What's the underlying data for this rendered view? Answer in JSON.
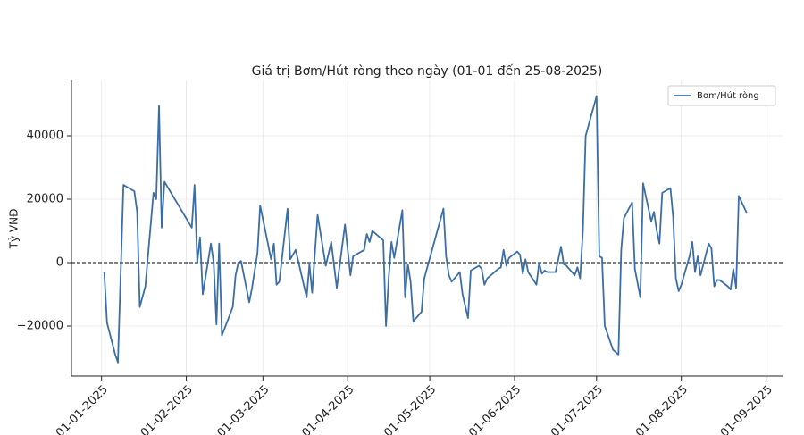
{
  "chart_data": {
    "type": "line",
    "title": "Giá trị Bơm/Hút ròng theo ngày (01-01 đến 25-08-2025)",
    "ylabel": "Tỷ VNĐ",
    "x": [
      "2025-01-02",
      "2025-01-03",
      "2025-01-06",
      "2025-01-07",
      "2025-01-09",
      "2025-01-13",
      "2025-01-14",
      "2025-01-15",
      "2025-01-17",
      "2025-01-20",
      "2025-01-21",
      "2025-01-22",
      "2025-01-23",
      "2025-01-24",
      "2025-02-03",
      "2025-02-04",
      "2025-02-05",
      "2025-02-06",
      "2025-02-07",
      "2025-02-10",
      "2025-02-11",
      "2025-02-12",
      "2025-02-13",
      "2025-02-14",
      "2025-02-18",
      "2025-02-19",
      "2025-02-20",
      "2025-02-21",
      "2025-02-24",
      "2025-02-25",
      "2025-02-27",
      "2025-02-28",
      "2025-03-04",
      "2025-03-05",
      "2025-03-06",
      "2025-03-07",
      "2025-03-10",
      "2025-03-11",
      "2025-03-13",
      "2025-03-17",
      "2025-03-18",
      "2025-03-19",
      "2025-03-21",
      "2025-03-24",
      "2025-03-26",
      "2025-03-28",
      "2025-03-31",
      "2025-04-02",
      "2025-04-03",
      "2025-04-07",
      "2025-04-08",
      "2025-04-09",
      "2025-04-10",
      "2025-04-14",
      "2025-04-15",
      "2025-04-16",
      "2025-04-17",
      "2025-04-18",
      "2025-04-21",
      "2025-04-22",
      "2025-04-23",
      "2025-04-24",
      "2025-04-25",
      "2025-04-28",
      "2025-04-29",
      "2025-05-06",
      "2025-05-07",
      "2025-05-08",
      "2025-05-09",
      "2025-05-12",
      "2025-05-13",
      "2025-05-15",
      "2025-05-16",
      "2025-05-19",
      "2025-05-20",
      "2025-05-21",
      "2025-05-22",
      "2025-05-26",
      "2025-05-27",
      "2025-05-28",
      "2025-05-29",
      "2025-05-30",
      "2025-06-02",
      "2025-06-03",
      "2025-06-04",
      "2025-06-05",
      "2025-06-06",
      "2025-06-09",
      "2025-06-10",
      "2025-06-11",
      "2025-06-12",
      "2025-06-13",
      "2025-06-16",
      "2025-06-18",
      "2025-06-19",
      "2025-06-20",
      "2025-06-23",
      "2025-06-24",
      "2025-06-25",
      "2025-06-26",
      "2025-06-27",
      "2025-07-01",
      "2025-07-02",
      "2025-07-03",
      "2025-07-04",
      "2025-07-07",
      "2025-07-09",
      "2025-07-10",
      "2025-07-11",
      "2025-07-14",
      "2025-07-15",
      "2025-07-17",
      "2025-07-18",
      "2025-07-21",
      "2025-07-22",
      "2025-07-23",
      "2025-07-24",
      "2025-07-25",
      "2025-07-28",
      "2025-07-29",
      "2025-07-30",
      "2025-07-31",
      "2025-08-01",
      "2025-08-04",
      "2025-08-05",
      "2025-08-06",
      "2025-08-07",
      "2025-08-08",
      "2025-08-11",
      "2025-08-12",
      "2025-08-13",
      "2025-08-14",
      "2025-08-15",
      "2025-08-18",
      "2025-08-19",
      "2025-08-20",
      "2025-08-21",
      "2025-08-22",
      "2025-08-25"
    ],
    "series": [
      {
        "name": "Bơm/Hút ròng",
        "color": "#3b6ea5",
        "values": [
          -3000,
          -19000,
          -29000,
          -31500,
          24500,
          22500,
          16000,
          -14000,
          -7500,
          22000,
          20000,
          49500,
          11000,
          25500,
          11000,
          24500,
          0,
          8000,
          -10000,
          6000,
          0,
          -19500,
          6000,
          -23000,
          -14000,
          -4000,
          0,
          500,
          -12500,
          -8000,
          3000,
          18000,
          1000,
          6000,
          -7000,
          -6000,
          17000,
          1000,
          4000,
          -11000,
          -500,
          -9500,
          15000,
          -1000,
          6500,
          -8000,
          12000,
          -4000,
          2000,
          4000,
          9000,
          6500,
          10000,
          7000,
          -20000,
          -5000,
          6500,
          1500,
          16500,
          -11000,
          -500,
          -6000,
          -18500,
          -15500,
          -5000,
          17000,
          2000,
          -4000,
          -6000,
          -3000,
          -10000,
          -17500,
          -2500,
          -1000,
          -2000,
          -7000,
          -5000,
          -2000,
          -1500,
          4000,
          -1000,
          1500,
          3500,
          2500,
          -3500,
          1000,
          -3000,
          -7000,
          0,
          -3500,
          -2500,
          -3000,
          -3000,
          5000,
          -500,
          -1000,
          -4000,
          -1500,
          -5000,
          10000,
          40000,
          52500,
          2000,
          1500,
          -20000,
          -27500,
          -29000,
          4000,
          14000,
          19000,
          -2000,
          -11000,
          25000,
          13000,
          16000,
          10000,
          6000,
          22000,
          23500,
          14500,
          -5000,
          -9000,
          -7000,
          2000,
          6500,
          -3000,
          2000,
          -4000,
          6000,
          4500,
          -7500,
          -5500,
          -5500,
          -7500,
          -8500,
          -2000,
          -8000,
          21000,
          15500
        ]
      }
    ],
    "xlim": [
      "2024-12-21",
      "2025-09-07"
    ],
    "xticks": [
      {
        "value": "2025-01-01",
        "label": "01-01-2025"
      },
      {
        "value": "2025-02-01",
        "label": "01-02-2025"
      },
      {
        "value": "2025-03-01",
        "label": "01-03-2025"
      },
      {
        "value": "2025-04-01",
        "label": "01-04-2025"
      },
      {
        "value": "2025-05-01",
        "label": "01-05-2025"
      },
      {
        "value": "2025-06-01",
        "label": "01-06-2025"
      },
      {
        "value": "2025-07-01",
        "label": "01-07-2025"
      },
      {
        "value": "2025-08-01",
        "label": "01-08-2025"
      },
      {
        "value": "2025-09-01",
        "label": "01-09-2025"
      }
    ],
    "ylim": [
      -35775,
      57465
    ],
    "yticks": [
      {
        "value": -20000,
        "label": "−20000"
      },
      0,
      20000,
      40000
    ],
    "reference_line": 0,
    "grid": true,
    "legend": "upper right"
  }
}
